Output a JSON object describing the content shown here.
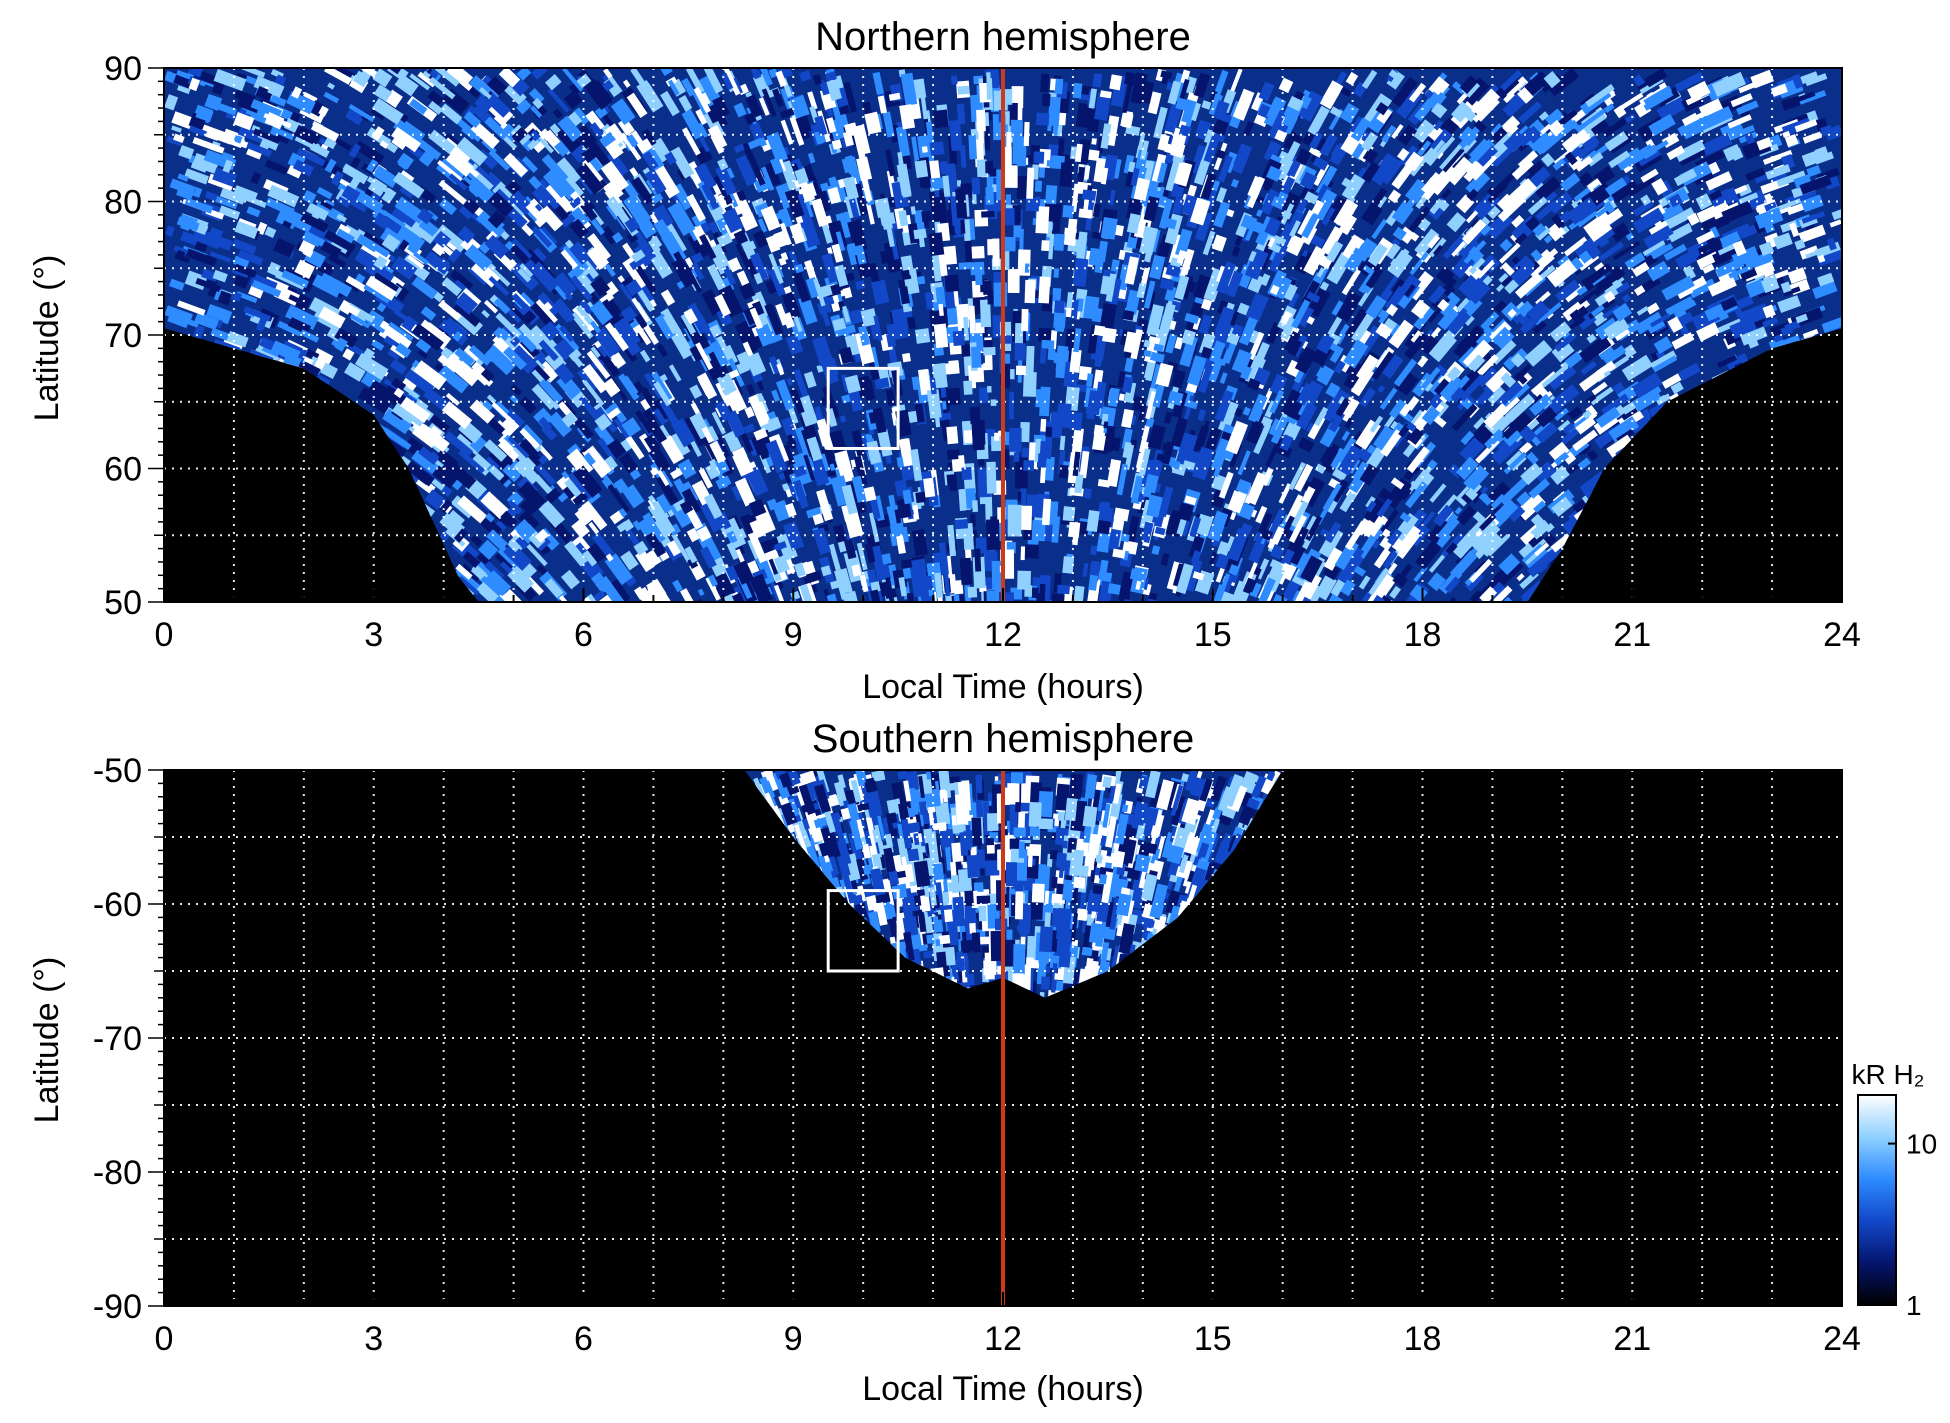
{
  "chart_data": [
    {
      "type": "heatmap",
      "title": "Northern hemisphere",
      "xlabel": "Local Time (hours)",
      "ylabel": "Latitude (°)",
      "xlim": [
        0,
        24
      ],
      "ylim": [
        50,
        90
      ],
      "xticks": [
        "0",
        "3",
        "6",
        "9",
        "12",
        "15",
        "18",
        "21",
        "24"
      ],
      "yticks": [
        "50",
        "60",
        "70",
        "80",
        "90"
      ],
      "xticks_values": [
        0,
        3,
        6,
        9,
        12,
        15,
        18,
        21,
        24
      ],
      "yticks_values": [
        50,
        60,
        70,
        80,
        90
      ],
      "grid": true,
      "background_color": "#000000",
      "reference_line": {
        "x": 12,
        "color": "#cc3a1a"
      },
      "highlight_box": {
        "x": [
          9.5,
          10.5
        ],
        "y": [
          61.5,
          67.5
        ],
        "color": "#ffffff"
      },
      "coverage_boundary": [
        [
          0,
          70.5
        ],
        [
          1,
          69
        ],
        [
          2,
          67.5
        ],
        [
          3,
          64
        ],
        [
          3.5,
          60
        ],
        [
          4.2,
          52
        ],
        [
          4.5,
          50
        ],
        [
          19.5,
          50
        ],
        [
          20,
          54
        ],
        [
          20.6,
          60
        ],
        [
          21.5,
          65
        ],
        [
          23,
          69
        ],
        [
          24,
          70.5
        ]
      ]
    },
    {
      "type": "heatmap",
      "title": "Southern hemisphere",
      "xlabel": "Local Time (hours)",
      "ylabel": "Latitude (°)",
      "xlim": [
        0,
        24
      ],
      "ylim": [
        -90,
        -50
      ],
      "xticks": [
        "0",
        "3",
        "6",
        "9",
        "12",
        "15",
        "18",
        "21",
        "24"
      ],
      "yticks": [
        "-90",
        "-80",
        "-70",
        "-60",
        "-50"
      ],
      "xticks_values": [
        0,
        3,
        6,
        9,
        12,
        15,
        18,
        21,
        24
      ],
      "yticks_values": [
        -90,
        -80,
        -70,
        -60,
        -50
      ],
      "grid": true,
      "background_color": "#000000",
      "reference_line": {
        "x": 12,
        "color": "#cc3a1a"
      },
      "highlight_box": {
        "x": [
          9.5,
          10.5
        ],
        "y": [
          -65,
          -59
        ],
        "color": "#ffffff"
      },
      "coverage_boundary": [
        [
          8.3,
          -50
        ],
        [
          9,
          -55
        ],
        [
          9.8,
          -60
        ],
        [
          10.6,
          -64
        ],
        [
          11.5,
          -66.3
        ],
        [
          12,
          -65.5
        ],
        [
          12.6,
          -67
        ],
        [
          13.5,
          -65
        ],
        [
          14.5,
          -61
        ],
        [
          15.3,
          -56
        ],
        [
          16,
          -50
        ]
      ]
    }
  ],
  "colorbar": {
    "unit": "kR H₂",
    "scale": "log",
    "range": [
      1,
      20
    ],
    "ticks": [
      "1",
      "10"
    ],
    "tick_values": [
      1,
      10
    ],
    "colors": [
      "#000000",
      "#05156e",
      "#1248c8",
      "#2e8cff",
      "#8fd0ff",
      "#ffffff"
    ]
  }
}
